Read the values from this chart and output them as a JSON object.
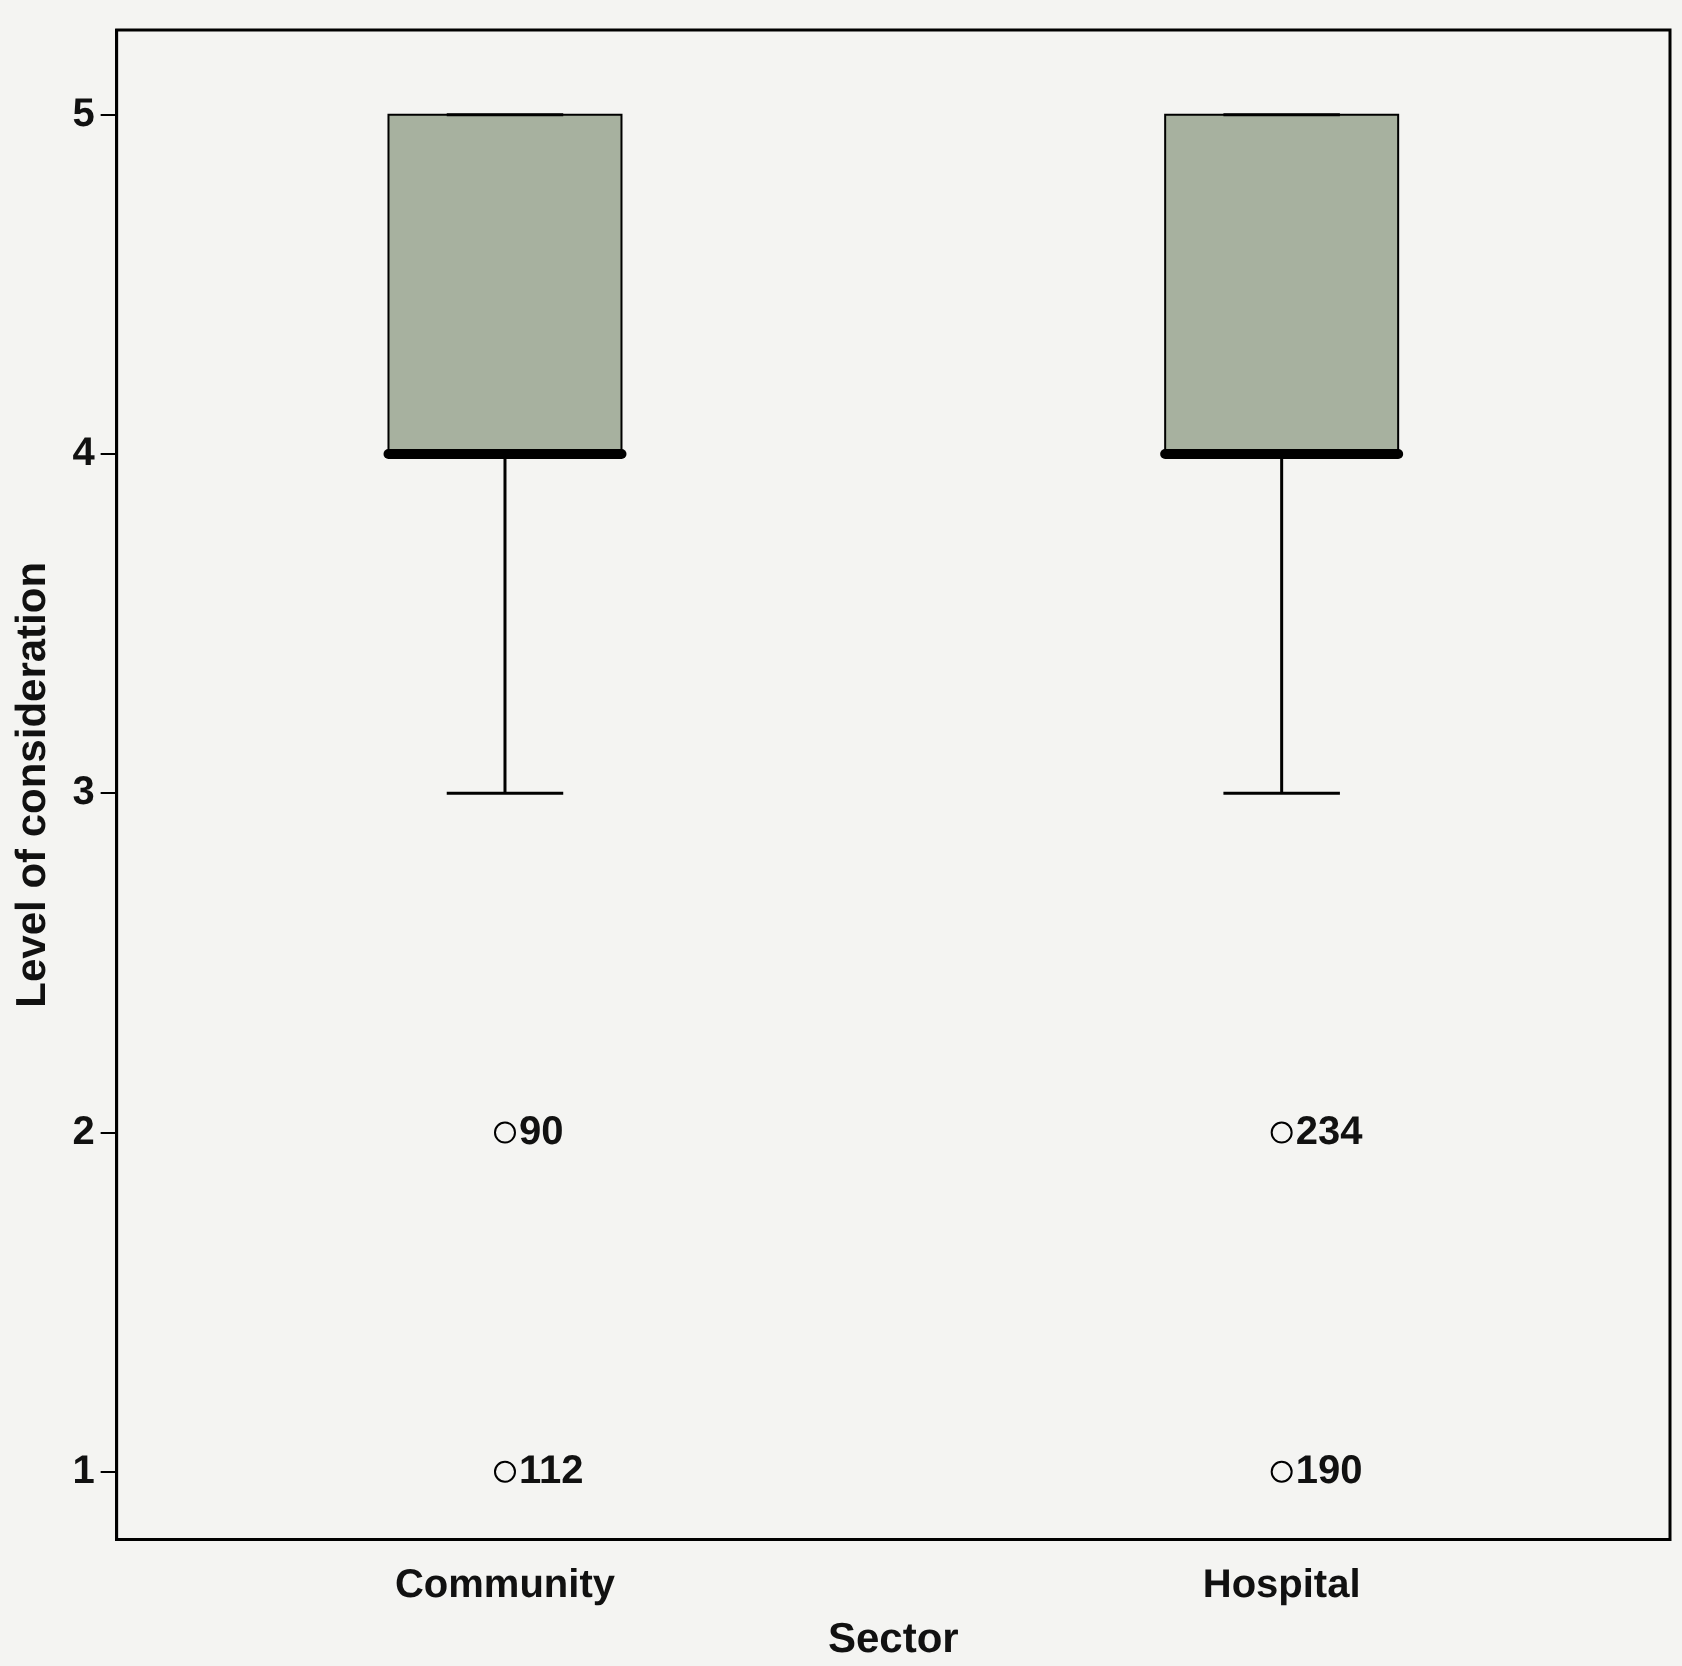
{
  "chart_data": {
    "type": "box",
    "xlabel": "Sector",
    "ylabel": "Level of consideration",
    "categories": [
      "Community",
      "Hospital"
    ],
    "boxes": [
      {
        "low": 3,
        "q1": 4,
        "median": 4,
        "q3": 5,
        "high": 5,
        "outliers": [
          2,
          1
        ]
      },
      {
        "low": 3,
        "q1": 4,
        "median": 4,
        "q3": 5,
        "high": 5,
        "outliers": [
          2,
          1
        ]
      }
    ],
    "color": "#a7b19f",
    "ylim": [
      0.8,
      5.25
    ],
    "yticks": [
      1,
      2,
      3,
      4,
      5
    ],
    "grid": false,
    "legend": false,
    "annotations": [
      "90",
      "112",
      "234",
      "190"
    ]
  }
}
